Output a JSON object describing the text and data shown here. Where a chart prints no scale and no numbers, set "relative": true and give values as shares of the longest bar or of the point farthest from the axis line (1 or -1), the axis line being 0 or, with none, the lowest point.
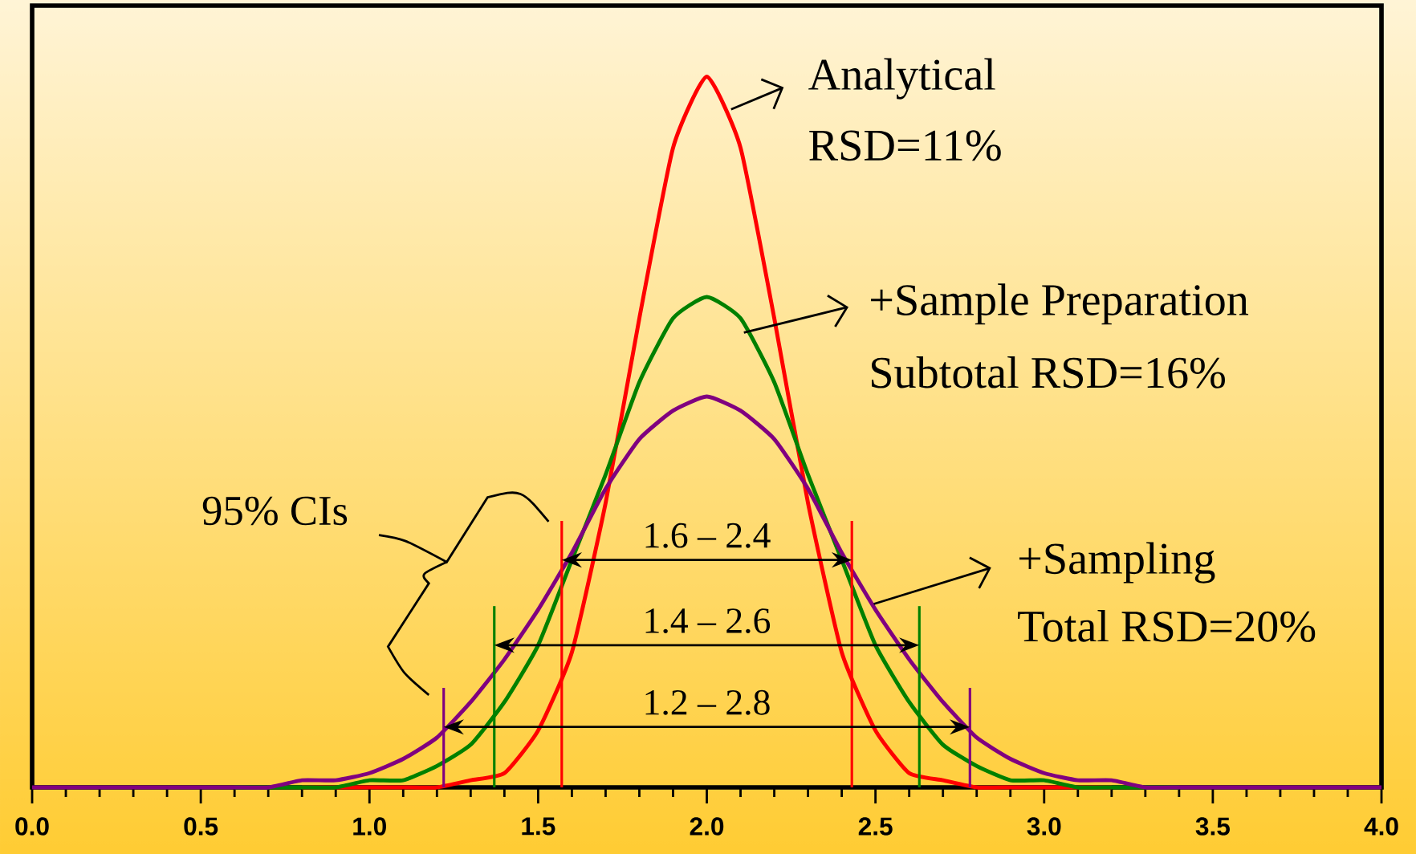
{
  "chart_data": {
    "type": "line",
    "relative": true,
    "tick_labels": "x",
    "x": [
      0,
      0.1,
      0.2,
      0.3,
      0.4,
      0.5,
      0.6,
      0.7,
      0.8,
      0.9,
      1.0,
      1.1,
      1.2,
      1.3,
      1.4,
      1.5,
      1.6,
      1.7,
      1.8,
      1.9,
      2.0,
      2.1,
      2.2,
      2.3,
      2.4,
      2.5,
      2.6,
      2.7,
      2.8,
      2.9,
      3.0,
      3.1,
      3.2,
      3.3,
      3.4,
      3.5,
      3.6,
      3.7,
      3.8,
      3.9,
      4.0
    ],
    "xlim": [
      0,
      4
    ],
    "xticks": [
      {
        "value": 0,
        "label": "0.0"
      },
      {
        "value": 0.5,
        "label": "0.5"
      },
      {
        "value": 1,
        "label": "1.0"
      },
      {
        "value": 1.5,
        "label": "1.5"
      },
      {
        "value": 2,
        "label": "2.0"
      },
      {
        "value": 2.5,
        "label": "2.5"
      },
      {
        "value": 3,
        "label": "3.0"
      },
      {
        "value": 3.5,
        "label": "3.5"
      },
      {
        "value": 4,
        "label": "4.0"
      }
    ],
    "series": [
      {
        "color": "#ff0000",
        "values": [
          null,
          null,
          null,
          null,
          null,
          null,
          null,
          null,
          0,
          0,
          0,
          0,
          0,
          0.01,
          0.02,
          0.08,
          0.19,
          0.4,
          0.66,
          0.9,
          1,
          0.9,
          0.66,
          0.4,
          0.19,
          0.08,
          0.02,
          0.01,
          0,
          0,
          0,
          0,
          0,
          null,
          null,
          null,
          null,
          null,
          null,
          null,
          null
        ]
      },
      {
        "color": "#008000",
        "values": [
          null,
          null,
          null,
          null,
          null,
          null,
          0,
          0,
          0,
          0,
          0.01,
          0.01,
          0.03,
          0.06,
          0.12,
          0.2,
          0.32,
          0.44,
          0.57,
          0.66,
          0.69,
          0.66,
          0.57,
          0.44,
          0.32,
          0.2,
          0.12,
          0.06,
          0.03,
          0.01,
          0.01,
          0,
          0,
          0,
          0,
          null,
          null,
          null,
          null,
          null,
          null
        ]
      },
      {
        "color": "#800080",
        "values": [
          0,
          0,
          0,
          0,
          0,
          0,
          0,
          0,
          0.01,
          0.01,
          0.02,
          0.04,
          0.07,
          0.12,
          0.18,
          0.25,
          0.33,
          0.42,
          0.49,
          0.53,
          0.55,
          0.53,
          0.49,
          0.42,
          0.33,
          0.25,
          0.18,
          0.12,
          0.07,
          0.04,
          0.02,
          0.01,
          0.01,
          0,
          0,
          0,
          0,
          0,
          0,
          0,
          0
        ]
      }
    ],
    "ref_lines": [
      {
        "axis": "x",
        "value": 1.57,
        "color": "#ff0000"
      },
      {
        "axis": "x",
        "value": 2.43,
        "color": "#ff0000"
      },
      {
        "axis": "x",
        "value": 1.37,
        "color": "#008000"
      },
      {
        "axis": "x",
        "value": 2.63,
        "color": "#008000"
      },
      {
        "axis": "x",
        "value": 1.22,
        "color": "#800080"
      },
      {
        "axis": "x",
        "value": 2.78,
        "color": "#800080"
      }
    ],
    "annotations": [
      "95% CIs",
      "1.6 – 2.4",
      "1.4 – 2.6",
      "1.2 – 2.8",
      "Analytical",
      "RSD=11%",
      "+Sample Preparation",
      "Subtotal RSD=16%",
      "+Sampling",
      "Total RSD=20%"
    ]
  }
}
